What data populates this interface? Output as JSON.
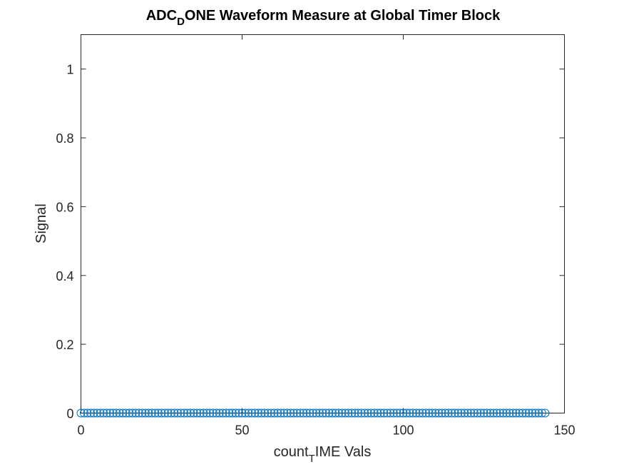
{
  "chart_data": {
    "type": "scatter",
    "title": {
      "prefix": "ADC",
      "subscript": "D",
      "suffix": "ONE Waveform Measure at Global Timer Block"
    },
    "xlabel": {
      "prefix": "count",
      "subscript": "T",
      "suffix": "IME Vals"
    },
    "ylabel": "Signal",
    "xlim": [
      0,
      150
    ],
    "ylim": [
      0,
      1.1
    ],
    "xticks": [
      0,
      50,
      100,
      150
    ],
    "xtick_labels": [
      "0",
      "50",
      "100",
      "150"
    ],
    "yticks": [
      0,
      0.2,
      0.4,
      0.6,
      0.8,
      1
    ],
    "ytick_labels": [
      "0",
      "0.2",
      "0.4",
      "0.6",
      "0.8",
      "1"
    ],
    "grid": false,
    "marker": "circle",
    "series_color": "#0072BD",
    "series": [
      {
        "x": [
          0,
          1,
          2,
          3,
          4,
          5,
          6,
          7,
          8,
          9,
          10,
          11,
          12,
          13,
          14,
          15,
          16,
          17,
          18,
          19,
          20,
          21,
          22,
          23,
          24,
          25,
          26,
          27,
          28,
          29,
          30,
          31,
          32,
          33,
          34,
          35,
          36,
          37,
          38,
          39,
          40,
          41,
          42,
          43,
          44,
          45,
          46,
          47,
          48,
          49,
          50,
          51,
          52,
          53,
          54,
          55,
          56,
          57,
          58,
          59,
          60,
          61,
          62,
          63,
          64,
          65,
          66,
          67,
          68,
          69,
          70,
          71,
          72,
          73,
          74,
          75,
          76,
          77,
          78,
          79,
          80,
          81,
          82,
          83,
          84,
          85,
          86,
          87,
          88,
          89,
          90,
          91,
          92,
          93,
          94,
          95,
          96,
          97,
          98,
          99,
          100,
          101,
          102,
          103,
          104,
          105,
          106,
          107,
          108,
          109,
          110,
          111,
          112,
          113,
          114,
          115,
          116,
          117,
          118,
          119,
          120,
          121,
          122,
          123,
          124,
          125,
          126,
          127,
          128,
          129,
          130,
          131,
          132,
          133,
          134,
          135,
          136,
          137,
          138,
          139,
          140,
          141,
          142,
          143,
          144
        ],
        "y": [
          0,
          0,
          0,
          0,
          0,
          0,
          0,
          0,
          0,
          0,
          0,
          0,
          0,
          0,
          0,
          0,
          0,
          0,
          0,
          0,
          0,
          0,
          0,
          0,
          0,
          0,
          0,
          0,
          0,
          0,
          0,
          0,
          0,
          0,
          0,
          0,
          0,
          0,
          0,
          0,
          0,
          0,
          0,
          0,
          0,
          0,
          0,
          0,
          0,
          0,
          0,
          0,
          0,
          0,
          0,
          0,
          0,
          0,
          0,
          0,
          0,
          0,
          0,
          0,
          0,
          0,
          0,
          0,
          0,
          0,
          0,
          0,
          0,
          0,
          0,
          0,
          0,
          0,
          0,
          0,
          0,
          0,
          0,
          0,
          0,
          0,
          0,
          0,
          0,
          0,
          0,
          0,
          0,
          0,
          0,
          0,
          0,
          0,
          0,
          0,
          0,
          0,
          0,
          0,
          0,
          0,
          0,
          0,
          0,
          0,
          0,
          0,
          0,
          0,
          0,
          0,
          0,
          0,
          0,
          0,
          0,
          0,
          0,
          0,
          0,
          0,
          0,
          0,
          0,
          0,
          0,
          0,
          0,
          0,
          0,
          0,
          0,
          0,
          0,
          0,
          0,
          0,
          0,
          0,
          0
        ]
      }
    ]
  }
}
